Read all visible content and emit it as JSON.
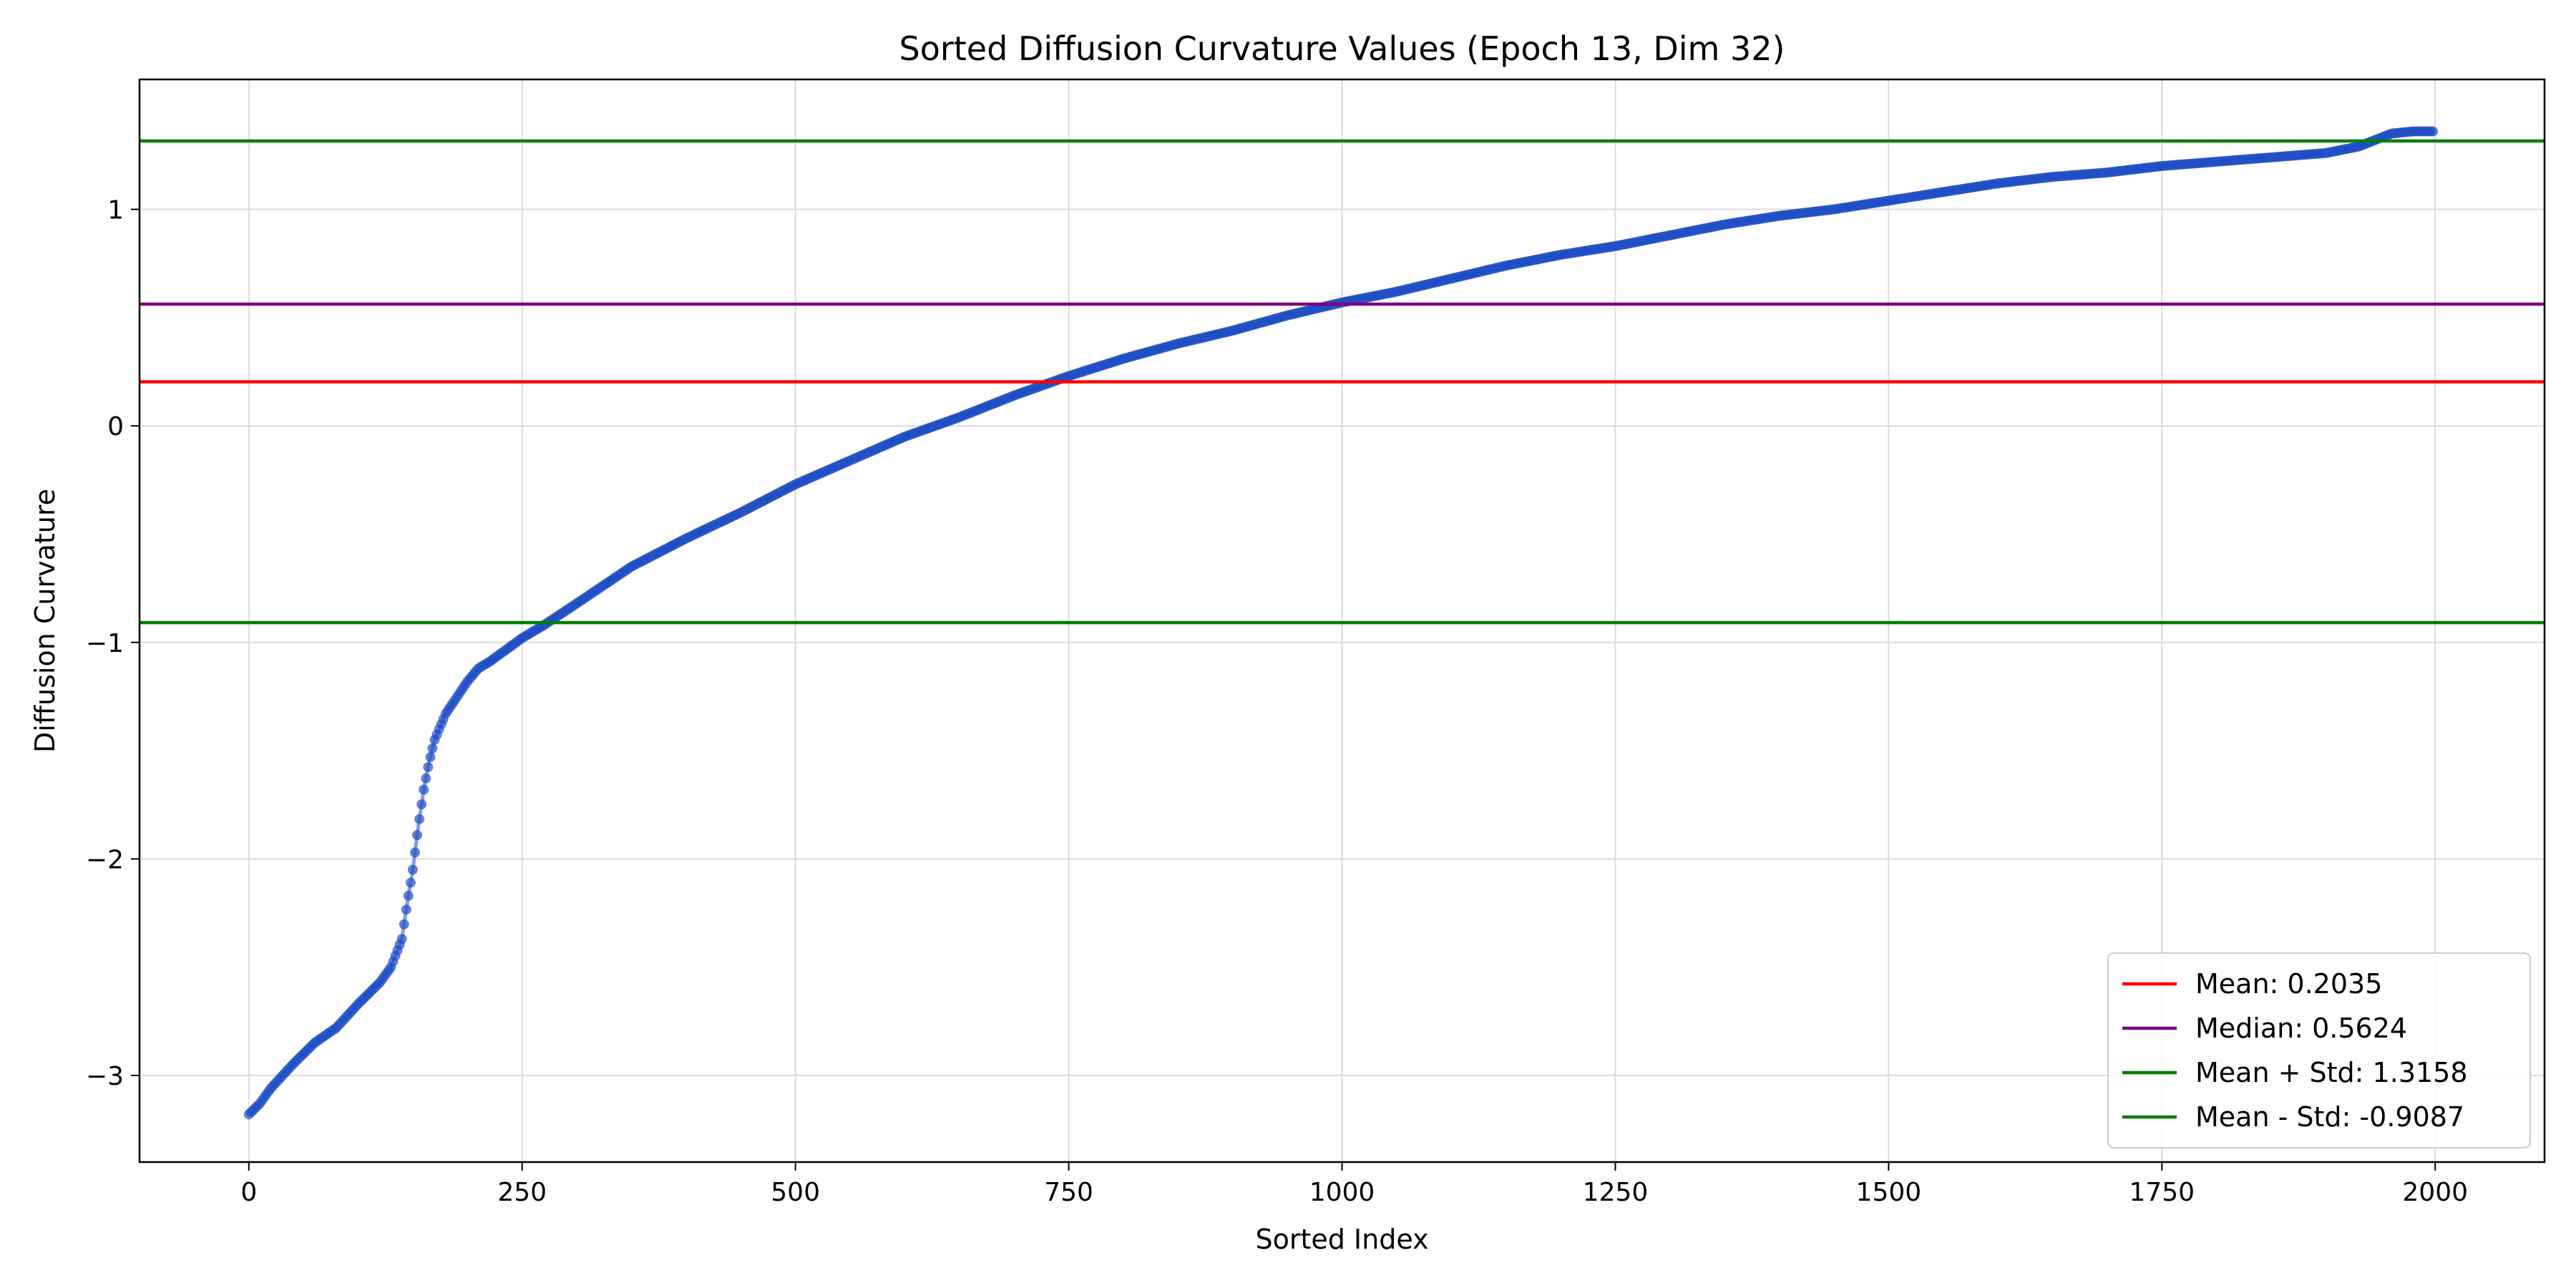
{
  "chart_data": {
    "type": "scatter",
    "title": "Sorted Diffusion Curvature Values (Epoch 13, Dim 32)",
    "xlabel": "Sorted Index",
    "ylabel": "Diffusion Curvature",
    "xlim": [
      -100,
      2100
    ],
    "ylim": [
      -3.4,
      1.6
    ],
    "xticks": [
      0,
      250,
      500,
      750,
      1000,
      1250,
      1500,
      1750,
      2000
    ],
    "xtick_labels": [
      "0",
      "250",
      "500",
      "750",
      "1000",
      "1250",
      "1500",
      "1750",
      "2000"
    ],
    "yticks": [
      -3,
      -2,
      -1,
      0,
      1
    ],
    "ytick_labels": [
      "−3",
      "−2",
      "−1",
      "0",
      "1"
    ],
    "grid": true,
    "legend_position": "bottom-right",
    "series": [
      {
        "color": "#1f4fc4",
        "n_points": 2000,
        "x_range": [
          0,
          1999
        ],
        "curve_x": [
          0,
          10,
          20,
          40,
          60,
          80,
          100,
          120,
          130,
          140,
          145,
          150,
          155,
          160,
          165,
          170,
          180,
          200,
          210,
          220,
          250,
          270,
          300,
          350,
          400,
          450,
          500,
          550,
          600,
          650,
          700,
          750,
          800,
          850,
          900,
          950,
          1000,
          1050,
          1100,
          1150,
          1200,
          1250,
          1300,
          1350,
          1400,
          1450,
          1500,
          1550,
          1600,
          1650,
          1700,
          1750,
          1800,
          1850,
          1900,
          1930,
          1945,
          1960,
          1980,
          1999
        ],
        "curve_y": [
          -3.18,
          -3.13,
          -3.06,
          -2.95,
          -2.85,
          -2.78,
          -2.67,
          -2.57,
          -2.5,
          -2.37,
          -2.2,
          -2.05,
          -1.85,
          -1.68,
          -1.55,
          -1.45,
          -1.33,
          -1.18,
          -1.12,
          -1.09,
          -0.98,
          -0.92,
          -0.82,
          -0.65,
          -0.52,
          -0.4,
          -0.27,
          -0.16,
          -0.05,
          0.04,
          0.14,
          0.23,
          0.31,
          0.38,
          0.44,
          0.51,
          0.57,
          0.62,
          0.68,
          0.74,
          0.79,
          0.83,
          0.88,
          0.93,
          0.97,
          1.0,
          1.04,
          1.08,
          1.12,
          1.15,
          1.17,
          1.2,
          1.22,
          1.24,
          1.26,
          1.29,
          1.32,
          1.35,
          1.36,
          1.36
        ]
      }
    ],
    "hlines": [
      {
        "label": "Mean: 0.2035",
        "value": 0.2035,
        "color": "#ff0000"
      },
      {
        "label": "Median: 0.5624",
        "value": 0.5624,
        "color": "#800080"
      },
      {
        "label": "Mean + Std: 1.3158",
        "value": 1.3158,
        "color": "#008000"
      },
      {
        "label": "Mean - Std: -0.9087",
        "value": -0.9087,
        "color": "#008000"
      }
    ]
  }
}
